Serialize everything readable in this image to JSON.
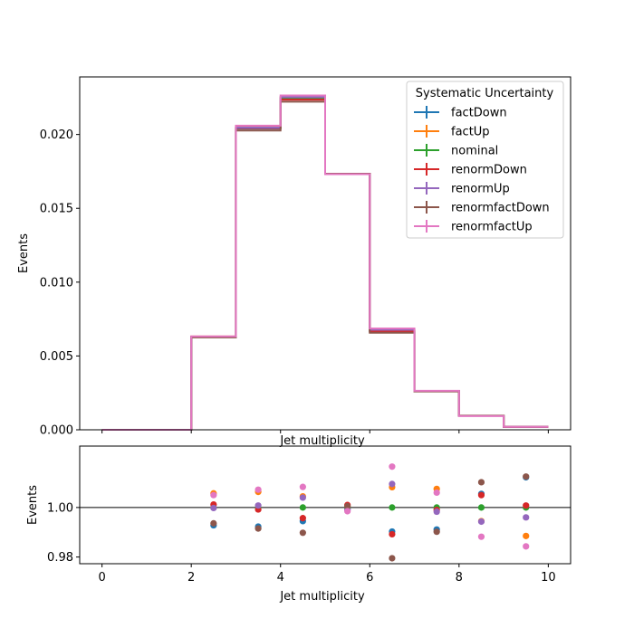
{
  "chart_data": [
    {
      "type": "line",
      "drawstyle": "step",
      "xlabel": "Jet multiplicity",
      "ylabel": "Events",
      "xlim": [
        -0.5,
        10.5
      ],
      "ylim": [
        0,
        0.0239
      ],
      "xticks": [
        0,
        2,
        4,
        6,
        8,
        10
      ],
      "yticks": [
        0.0,
        0.005,
        0.01,
        0.015,
        0.02
      ],
      "ytick_labels": [
        "0.000",
        "0.005",
        "0.010",
        "0.015",
        "0.020"
      ],
      "x_tick_labels_visible": false,
      "grid": false,
      "legend": {
        "title": "Systematic Uncertainty",
        "placement": "top-right"
      },
      "bin_edges": [
        0,
        1,
        2,
        3,
        4,
        5,
        6,
        7,
        8,
        9,
        10
      ],
      "series": [
        {
          "name": "factDown",
          "color": "#1f77b4",
          "values": [
            0,
            0,
            0.00628,
            0.0204,
            0.0224,
            0.01732,
            0.00665,
            0.00262,
            0.00095,
            0.0002
          ]
        },
        {
          "name": "factUp",
          "color": "#ff7f0e",
          "values": [
            0,
            0,
            0.00632,
            0.0205,
            0.02252,
            0.01733,
            0.00676,
            0.00263,
            0.00095,
            0.0002
          ]
        },
        {
          "name": "nominal",
          "color": "#2ca02c",
          "values": [
            0,
            0,
            0.0063,
            0.02045,
            0.02245,
            0.01733,
            0.00671,
            0.00263,
            0.00095,
            0.0002
          ]
        },
        {
          "name": "renormDown",
          "color": "#d62728",
          "values": [
            0,
            0,
            0.00631,
            0.02043,
            0.02236,
            0.01734,
            0.00665,
            0.00262,
            0.00095,
            0.0002
          ]
        },
        {
          "name": "renormUp",
          "color": "#9467bd",
          "values": [
            0,
            0,
            0.0063,
            0.02047,
            0.02253,
            0.01733,
            0.00677,
            0.00263,
            0.00095,
            0.0002
          ]
        },
        {
          "name": "renormfactDown",
          "color": "#8c564b",
          "values": [
            0,
            0,
            0.00626,
            0.02027,
            0.02222,
            0.01734,
            0.00657,
            0.0026,
            0.00096,
            0.0002
          ]
        },
        {
          "name": "renormfactUp",
          "color": "#e377c2",
          "values": [
            0,
            0,
            0.00633,
            0.0206,
            0.02264,
            0.01731,
            0.00686,
            0.00264,
            0.00093,
            0.0002
          ]
        }
      ]
    },
    {
      "type": "scatter",
      "xlabel": "Jet multiplicity",
      "ylabel": "Events",
      "xlim": [
        -0.5,
        10.5
      ],
      "ylim": [
        0.9773,
        1.0248
      ],
      "xticks": [
        0,
        2,
        4,
        6,
        8,
        10
      ],
      "yticks": [
        0.98,
        1.0
      ],
      "ytick_labels": [
        "0.98",
        "1.00"
      ],
      "reference_line": 1.0,
      "grid": false,
      "x": [
        2.5,
        3.5,
        4.5,
        5.5,
        6.5,
        7.5,
        8.5,
        9.5
      ],
      "series": [
        {
          "name": "factDown",
          "color": "#1f77b4",
          "values": [
            0.9928,
            0.9923,
            0.9945,
            0.9995,
            0.9903,
            0.9911,
            1.0055,
            1.0122
          ]
        },
        {
          "name": "factUp",
          "color": "#ff7f0e",
          "values": [
            1.0057,
            1.0063,
            1.0045,
            1.0005,
            1.0082,
            1.0075,
            0.9945,
            0.9885
          ]
        },
        {
          "name": "nominal",
          "color": "#2ca02c",
          "values": [
            1.0,
            1.0,
            1.0,
            1.0,
            1.0,
            1.0,
            1.0,
            1.0
          ]
        },
        {
          "name": "renormDown",
          "color": "#d62728",
          "values": [
            1.0012,
            0.9992,
            0.9957,
            1.001,
            0.9892,
            0.999,
            1.005,
            1.0008
          ]
        },
        {
          "name": "renormUp",
          "color": "#9467bd",
          "values": [
            0.9998,
            1.0008,
            1.004,
            0.999,
            1.0095,
            0.9983,
            0.9943,
            0.996
          ]
        },
        {
          "name": "renormfactDown",
          "color": "#8c564b",
          "values": [
            0.9936,
            0.9915,
            0.9898,
            1.0005,
            0.9795,
            0.9902,
            1.0102,
            1.0125
          ]
        },
        {
          "name": "renormfactUp",
          "color": "#e377c2",
          "values": [
            1.005,
            1.0072,
            1.0083,
            0.9985,
            1.0165,
            1.006,
            0.9882,
            0.9843
          ]
        }
      ]
    }
  ]
}
